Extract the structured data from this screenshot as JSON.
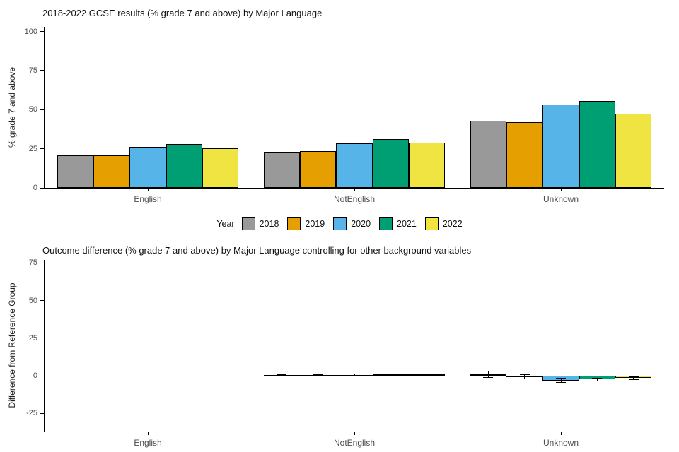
{
  "legend": {
    "title": "Year"
  },
  "chart_data": [
    {
      "type": "bar",
      "title": "2018-2022 GCSE results (% grade 7 and above) by Major Language",
      "ylabel": "% grade 7 and above",
      "xlabel": "",
      "categories": [
        "English",
        "NotEnglish",
        "Unknown"
      ],
      "ylim": [
        0,
        103
      ],
      "yticks": [
        0,
        25,
        50,
        75,
        100
      ],
      "grid": false,
      "legend_position": "bottom",
      "series": [
        {
          "name": "2018",
          "color": "#999999",
          "values": [
            21,
            23,
            43
          ]
        },
        {
          "name": "2019",
          "color": "#E69F00",
          "values": [
            21,
            23.5,
            42
          ]
        },
        {
          "name": "2020",
          "color": "#56B4E9",
          "values": [
            26,
            28.5,
            53.5
          ]
        },
        {
          "name": "2021",
          "color": "#009E73",
          "values": [
            28,
            31,
            55.5
          ]
        },
        {
          "name": "2022",
          "color": "#F0E442",
          "values": [
            25.5,
            29,
            47.5
          ]
        }
      ]
    },
    {
      "type": "bar",
      "title": "Outcome difference (% grade 7 and above) by Major Language controlling for other background variables",
      "ylabel": "Difference from Reference Group",
      "xlabel": "",
      "categories": [
        "English",
        "NotEnglish",
        "Unknown"
      ],
      "ylim": [
        -37,
        77
      ],
      "yticks": [
        -25,
        0,
        25,
        50,
        75
      ],
      "grid": false,
      "zero_line": true,
      "series": [
        {
          "name": "2018",
          "color": "#999999",
          "values": [
            0,
            0.3,
            1
          ],
          "errors": [
            0,
            0.5,
            2
          ]
        },
        {
          "name": "2019",
          "color": "#E69F00",
          "values": [
            0,
            0.4,
            -0.5
          ],
          "errors": [
            0,
            0.5,
            1.5
          ]
        },
        {
          "name": "2020",
          "color": "#56B4E9",
          "values": [
            0,
            0.7,
            -3
          ],
          "errors": [
            0,
            0.5,
            1.5
          ]
        },
        {
          "name": "2021",
          "color": "#009E73",
          "values": [
            0,
            0.8,
            -2.5
          ],
          "errors": [
            0,
            0.5,
            1
          ]
        },
        {
          "name": "2022",
          "color": "#F0E442",
          "values": [
            0,
            0.9,
            -1.5
          ],
          "errors": [
            0,
            0.5,
            1
          ]
        }
      ]
    }
  ]
}
